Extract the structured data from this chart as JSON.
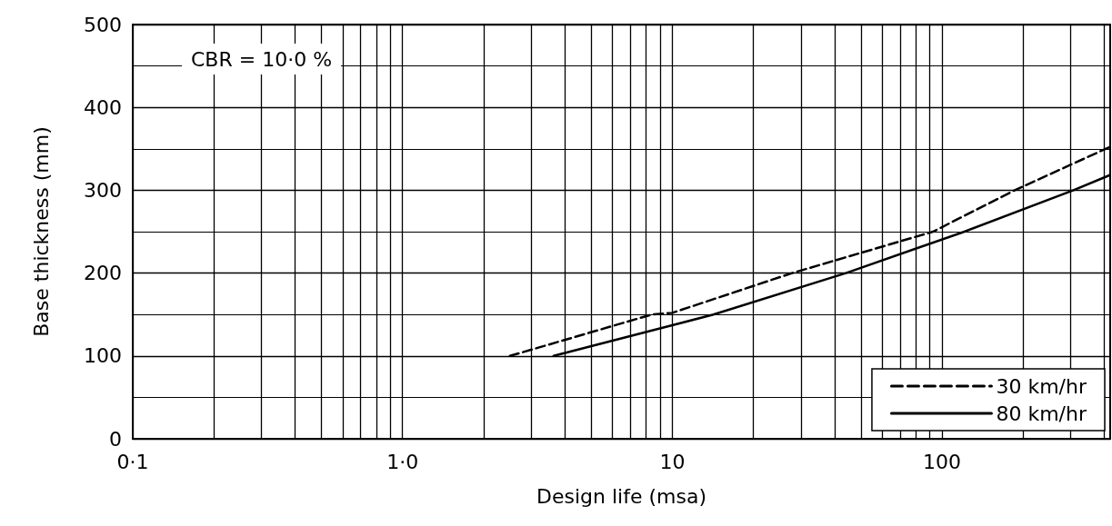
{
  "chart_data": {
    "type": "line",
    "xlabel": "Design life (msa)",
    "ylabel": "Base thickness (mm)",
    "annotations": [
      "CBR = 10·0 %"
    ],
    "log": "x",
    "grid": true,
    "legend": "bottom right",
    "marker": "none",
    "xlim": [
      0.1,
      420
    ],
    "xticks": [
      {
        "value": 0.1,
        "label": "0·1"
      },
      {
        "value": 1,
        "label": "1·0"
      },
      10,
      100
    ],
    "ylim": [
      0,
      500
    ],
    "yticks": [
      0,
      100,
      200,
      300,
      400,
      500
    ],
    "series": [
      {
        "name": "30 km/hr",
        "color": "#000000",
        "line_style": "dashed",
        "x": [
          2.5,
          8.4,
          10,
          27.8,
          92.6,
          186,
          417
        ],
        "values": [
          100,
          150,
          152,
          200,
          250,
          300,
          352
        ]
      },
      {
        "name": "80 km/hr",
        "color": "#000000",
        "line_style": "solid",
        "x": [
          3.63,
          10,
          14.2,
          44,
          121,
          307,
          417
        ],
        "values": [
          100,
          137,
          150,
          200,
          250,
          300,
          318
        ]
      }
    ]
  }
}
